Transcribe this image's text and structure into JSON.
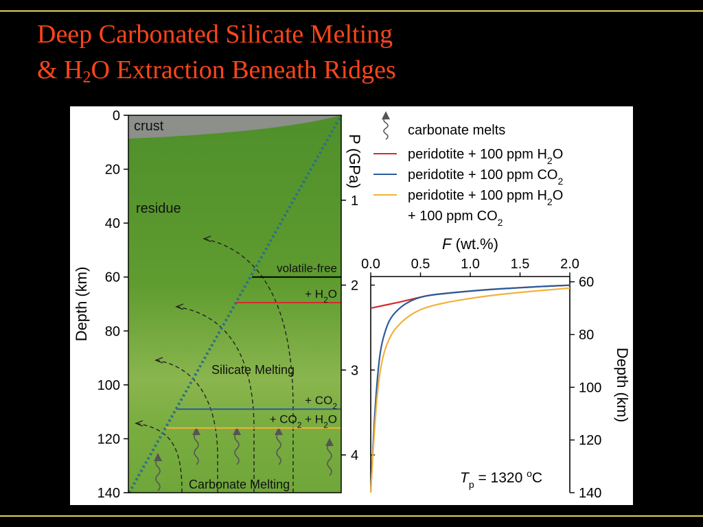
{
  "slide": {
    "title_line1": "Deep Carbonated Silicate Melting",
    "title_line2_pre": "& H",
    "title_line2_sub": "2",
    "title_line2_post": "O Extraction Beneath Ridges"
  },
  "colors": {
    "background": "#000000",
    "title": "#ff4519",
    "rule": "#e3d35a",
    "mantle_green_top": "#4f8f2a",
    "mantle_green_bottom": "#7fb442",
    "crust": "#8c8f8a",
    "dotted_line": "#2f6f86",
    "h2o_line": "#d42a2a",
    "co2_line": "#2a5c9c",
    "h2o_co2_line": "#f0b23a"
  },
  "legend": {
    "arrow_label": "carbonate melts",
    "entries": [
      {
        "key": "h2o",
        "parts": [
          {
            "t": "peridotite + 100 ppm H"
          },
          {
            "t": "2",
            "sub": true
          },
          {
            "t": "O"
          }
        ]
      },
      {
        "key": "co2",
        "parts": [
          {
            "t": "peridotite + 100 ppm CO"
          },
          {
            "t": "2",
            "sub": true
          }
        ]
      },
      {
        "key": "h2o_co2",
        "parts": [
          {
            "t": "peridotite + 100 ppm H"
          },
          {
            "t": "2",
            "sub": true
          },
          {
            "t": "O"
          }
        ],
        "line2": [
          {
            "t": "+ 100 ppm CO"
          },
          {
            "t": "2",
            "sub": true
          }
        ]
      }
    ]
  },
  "left_panel": {
    "depth_axis_label": "Depth (km)",
    "depth_ticks": [
      0,
      20,
      40,
      60,
      80,
      100,
      120,
      140
    ],
    "pressure_axis_label": "P (GPa)",
    "pressure_ticks": [
      1,
      2,
      3,
      4
    ],
    "region_labels": {
      "crust": "crust",
      "residue": "residue",
      "silicate": "Silicate Melting",
      "carbonate": "Carbonate Melting"
    },
    "layers": [
      {
        "key": "volatile-free",
        "depth_km": 60,
        "color": "#000000",
        "parts": [
          {
            "t": "volatile-free"
          }
        ]
      },
      {
        "key": "h2o",
        "depth_km": 69.5,
        "color": "#d42a2a",
        "parts": [
          {
            "t": "+ H"
          },
          {
            "t": "2",
            "sub": true
          },
          {
            "t": "O"
          }
        ]
      },
      {
        "key": "co2",
        "depth_km": 109,
        "color": "#2a5c9c",
        "parts": [
          {
            "t": "+ CO"
          },
          {
            "t": "2",
            "sub": true
          }
        ]
      },
      {
        "key": "h2o_co2",
        "depth_km": 116,
        "color": "#f0b23a",
        "parts": [
          {
            "t": "+ CO"
          },
          {
            "t": "2",
            "sub": true
          },
          {
            "t": " + H"
          },
          {
            "t": "2",
            "sub": true
          },
          {
            "t": "O"
          }
        ]
      }
    ]
  },
  "chart_data": {
    "type": "line",
    "x_label_var": "F",
    "x_label_unit": " (wt.%)",
    "xlim": [
      0,
      2.0
    ],
    "x_ticks": [
      "0.0",
      "0.5",
      "1.0",
      "1.5",
      "2.0"
    ],
    "y_label": "Depth (km)",
    "ylim": [
      58,
      140
    ],
    "y_ticks": [
      60,
      80,
      100,
      120,
      140
    ],
    "annotation": {
      "var": "T",
      "sub": "p",
      "mid": " = 1320 ",
      "sup": "o",
      "end": "C"
    },
    "series": [
      {
        "key": "h2o",
        "color": "#d42a2a",
        "points": [
          [
            0.0,
            70
          ],
          [
            0.1,
            69.2
          ],
          [
            0.2,
            68.4
          ],
          [
            0.3,
            67.6
          ],
          [
            0.4,
            66.7
          ],
          [
            0.5,
            65.8
          ],
          [
            0.6,
            65.0
          ],
          [
            0.8,
            64.2
          ],
          [
            1.0,
            63.5
          ],
          [
            1.2,
            62.9
          ],
          [
            1.5,
            62.2
          ],
          [
            1.8,
            61.6
          ],
          [
            2.0,
            61.3
          ]
        ]
      },
      {
        "key": "co2",
        "color": "#2a5c9c",
        "points": [
          [
            0.0,
            140
          ],
          [
            0.02,
            125
          ],
          [
            0.04,
            110
          ],
          [
            0.07,
            95
          ],
          [
            0.1,
            85
          ],
          [
            0.15,
            78
          ],
          [
            0.2,
            73.5
          ],
          [
            0.3,
            69.5
          ],
          [
            0.4,
            67.2
          ],
          [
            0.5,
            65.8
          ],
          [
            0.6,
            65.0
          ],
          [
            0.8,
            64.2
          ],
          [
            1.0,
            63.5
          ],
          [
            1.2,
            62.9
          ],
          [
            1.5,
            62.2
          ],
          [
            1.8,
            61.6
          ],
          [
            2.0,
            61.3
          ]
        ]
      },
      {
        "key": "h2o_co2",
        "color": "#f0b23a",
        "points": [
          [
            0.0,
            140
          ],
          [
            0.03,
            120
          ],
          [
            0.07,
            100
          ],
          [
            0.12,
            88
          ],
          [
            0.2,
            80
          ],
          [
            0.3,
            75.5
          ],
          [
            0.4,
            72.5
          ],
          [
            0.5,
            70.5
          ],
          [
            0.6,
            69.2
          ],
          [
            0.8,
            67.5
          ],
          [
            1.0,
            66.3
          ],
          [
            1.2,
            65.2
          ],
          [
            1.5,
            64.0
          ],
          [
            1.8,
            63.0
          ],
          [
            2.0,
            62.4
          ]
        ]
      }
    ]
  }
}
